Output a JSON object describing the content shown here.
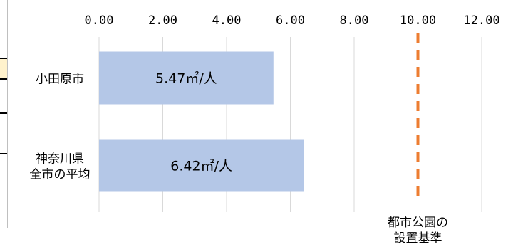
{
  "chart_data": {
    "type": "bar",
    "orientation": "horizontal",
    "title": "",
    "xlabel": "",
    "ylabel": "",
    "categories": [
      [
        "小田原市"
      ],
      [
        "神奈川県",
        "全市の平均"
      ]
    ],
    "values": [
      5.47,
      6.42
    ],
    "data_labels": [
      "5.47㎡/人",
      "6.42㎡/人"
    ],
    "xlim": [
      0,
      12
    ],
    "x_ticks": [
      "0.00",
      "2.00",
      "4.00",
      "6.00",
      "8.00",
      "10.00",
      "12.00"
    ],
    "x_tick_values": [
      0,
      2,
      4,
      6,
      8,
      10,
      12
    ],
    "x_axis_position": "top",
    "grid": true,
    "reference_line": {
      "value": 10,
      "label_lines": [
        "都市公園の",
        "設置基準"
      ],
      "style": "dashed"
    },
    "colors": {
      "bar": "#b4c7e7",
      "reference_line": "#ed7d31",
      "grid": "#d9d9d9",
      "text": "#000000",
      "highlight_box": "#fff2cc"
    }
  }
}
